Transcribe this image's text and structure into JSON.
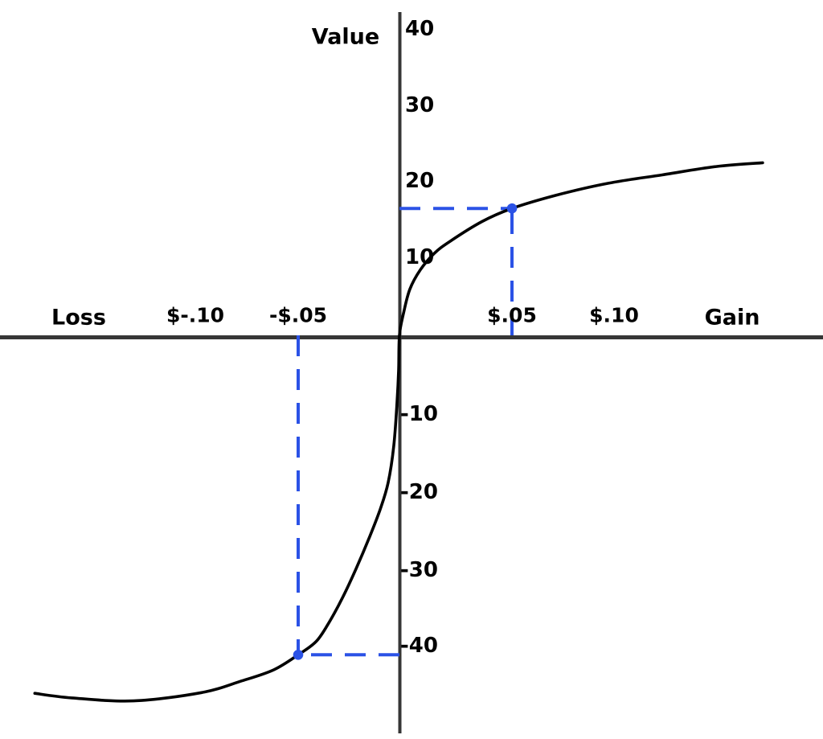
{
  "page": {
    "background": "#ffffff"
  },
  "chart_data": {
    "type": "line",
    "title": "",
    "ylabel": "Value",
    "xlabel_left": "Loss",
    "xlabel_right": "Gain",
    "grid": false,
    "legend": false,
    "axis_color": "#363636",
    "xlim": [
      -0.2,
      0.21
    ],
    "ylim": [
      -48,
      42
    ],
    "x_ticks": [
      {
        "value": -0.1,
        "label": "$-.10"
      },
      {
        "value": -0.05,
        "label": "-$.05"
      },
      {
        "value": 0.05,
        "label": "$.05"
      },
      {
        "value": 0.1,
        "label": "$.10"
      }
    ],
    "y_ticks": [
      {
        "value": 40,
        "label": "40"
      },
      {
        "value": 30,
        "label": "30"
      },
      {
        "value": 20,
        "label": "20"
      },
      {
        "value": 10,
        "label": "10"
      },
      {
        "value": -10,
        "label": "-10"
      },
      {
        "value": -20,
        "label": "-20"
      },
      {
        "value": -30,
        "label": "-30"
      },
      {
        "value": -40,
        "label": "-40"
      }
    ],
    "series": [
      {
        "name": "value-function-curve",
        "color": "#000000",
        "points": [
          [
            -0.178,
            -46.3
          ],
          [
            -0.16,
            -46.9
          ],
          [
            -0.13,
            -47.3
          ],
          [
            -0.097,
            -46.2
          ],
          [
            -0.078,
            -44.7
          ],
          [
            -0.062,
            -43.2
          ],
          [
            -0.05,
            -41.2
          ],
          [
            -0.041,
            -39.4
          ],
          [
            -0.0345,
            -36.8
          ],
          [
            -0.028,
            -33.6
          ],
          [
            -0.0214,
            -29.8
          ],
          [
            -0.0147,
            -25.7
          ],
          [
            -0.0095,
            -22.2
          ],
          [
            -0.0056,
            -18.8
          ],
          [
            -0.0028,
            -14.1
          ],
          [
            -0.0012,
            -8.5
          ],
          [
            -0.0004,
            -4.4
          ],
          [
            0,
            0
          ],
          [
            0.0018,
            2.8
          ],
          [
            0.0046,
            5.9
          ],
          [
            0.0093,
            8.4
          ],
          [
            0.0154,
            10.5
          ],
          [
            0.0225,
            12.1
          ],
          [
            0.0368,
            14.7
          ],
          [
            0.05,
            16.4
          ],
          [
            0.0713,
            18.1
          ],
          [
            0.0972,
            19.7
          ],
          [
            0.1236,
            20.8
          ],
          [
            0.15,
            21.9
          ],
          [
            0.1728,
            22.4
          ]
        ]
      }
    ],
    "annotations": {
      "color": "#2b52e6",
      "dash_pattern": "26 16",
      "points": [
        {
          "name": "gain-example",
          "x": 0.05,
          "y": 16.4
        },
        {
          "name": "loss-example",
          "x": -0.05,
          "y": -41.2
        }
      ]
    }
  }
}
